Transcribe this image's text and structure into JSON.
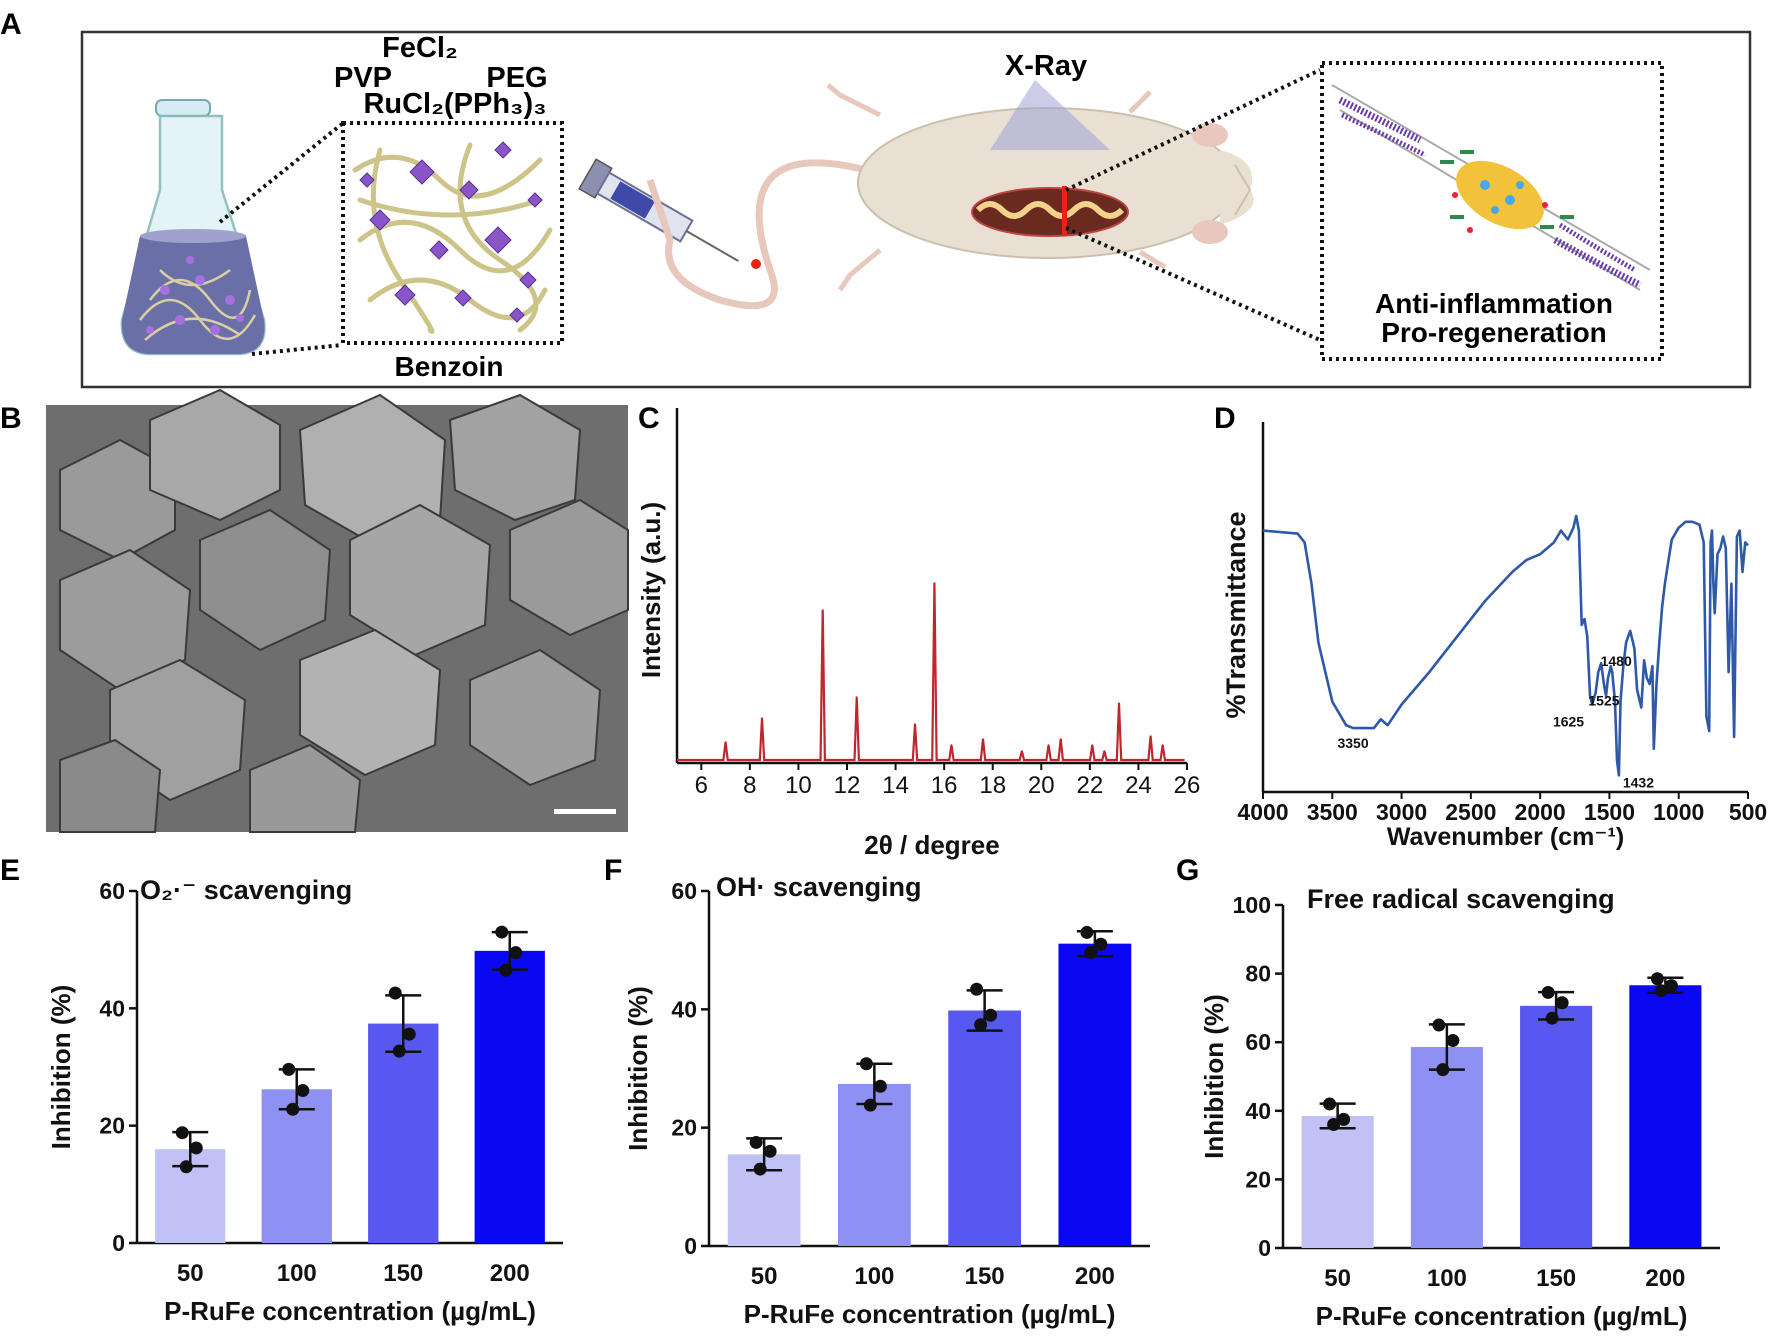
{
  "panel_labels": {
    "a": "A",
    "b": "B",
    "c": "C",
    "d": "D",
    "e": "E",
    "f": "F",
    "g": "G"
  },
  "schematic": {
    "reagents": {
      "fecl2": "FeCl₂",
      "pvp": "PVP",
      "peg": "PEG",
      "rucl2": "RuCl₂(PPh₃)₃"
    },
    "benzoin_label": "Benzoin",
    "xray_label": "X-Ray",
    "effect_line1": "Anti-inflammation",
    "effect_line2": "Pro-regeneration",
    "colors": {
      "flask_liquid": "#6b6fa8",
      "crystal": "#8a55c8",
      "fiber": "#cdc48a",
      "rat": "#e9dfd2",
      "xray_cone": "#9fa3d6",
      "nerve": "#6a3aa8"
    }
  },
  "chart_data": [
    {
      "panel": "C",
      "type": "line",
      "xlabel": "2θ / degree",
      "ylabel": "Intensity (a.u.)",
      "xlim": [
        5,
        26
      ],
      "xticks": [
        6,
        8,
        10,
        12,
        14,
        16,
        18,
        20,
        22,
        24,
        26
      ],
      "color": "#c0262d",
      "peaks": [
        {
          "x": 7.0,
          "h": 0.06
        },
        {
          "x": 8.5,
          "h": 0.14
        },
        {
          "x": 11.0,
          "h": 0.5
        },
        {
          "x": 12.4,
          "h": 0.21
        },
        {
          "x": 14.8,
          "h": 0.12
        },
        {
          "x": 15.6,
          "h": 0.59
        },
        {
          "x": 16.3,
          "h": 0.05
        },
        {
          "x": 17.6,
          "h": 0.07
        },
        {
          "x": 19.2,
          "h": 0.03
        },
        {
          "x": 20.3,
          "h": 0.05
        },
        {
          "x": 20.8,
          "h": 0.07
        },
        {
          "x": 22.1,
          "h": 0.05
        },
        {
          "x": 22.6,
          "h": 0.03
        },
        {
          "x": 23.2,
          "h": 0.19
        },
        {
          "x": 24.5,
          "h": 0.08
        },
        {
          "x": 25.0,
          "h": 0.05
        }
      ]
    },
    {
      "panel": "D",
      "type": "line",
      "xlabel": "Wavenumber (cm⁻¹)",
      "ylabel": "%Transmittance",
      "xlim": [
        4000,
        500
      ],
      "xticks": [
        4000,
        3500,
        3000,
        2500,
        2000,
        1500,
        1000,
        500
      ],
      "color": "#2e58a8",
      "x": [
        4000,
        3750,
        3700,
        3650,
        3600,
        3500,
        3400,
        3350,
        3300,
        3200,
        3150,
        3100,
        3000,
        2800,
        2600,
        2400,
        2200,
        2100,
        2000,
        1900,
        1850,
        1800,
        1760,
        1740,
        1720,
        1700,
        1680,
        1660,
        1640,
        1625,
        1600,
        1580,
        1560,
        1540,
        1525,
        1510,
        1490,
        1480,
        1460,
        1445,
        1432,
        1420,
        1400,
        1380,
        1350,
        1320,
        1300,
        1270,
        1250,
        1230,
        1210,
        1190,
        1180,
        1160,
        1140,
        1120,
        1100,
        1080,
        1050,
        1000,
        950,
        900,
        850,
        820,
        800,
        780,
        770,
        760,
        750,
        740,
        720,
        700,
        680,
        660,
        640,
        620,
        600,
        580,
        560,
        540,
        520,
        500
      ],
      "y": [
        0.88,
        0.87,
        0.84,
        0.7,
        0.5,
        0.3,
        0.22,
        0.21,
        0.21,
        0.21,
        0.24,
        0.22,
        0.29,
        0.4,
        0.52,
        0.64,
        0.74,
        0.78,
        0.8,
        0.84,
        0.88,
        0.85,
        0.89,
        0.93,
        0.88,
        0.56,
        0.58,
        0.52,
        0.32,
        0.29,
        0.33,
        0.4,
        0.43,
        0.36,
        0.32,
        0.38,
        0.42,
        0.4,
        0.3,
        0.1,
        0.05,
        0.3,
        0.42,
        0.5,
        0.54,
        0.48,
        0.34,
        0.28,
        0.44,
        0.38,
        0.36,
        0.42,
        0.14,
        0.36,
        0.5,
        0.62,
        0.7,
        0.76,
        0.85,
        0.89,
        0.91,
        0.91,
        0.9,
        0.84,
        0.25,
        0.2,
        0.84,
        0.88,
        0.7,
        0.6,
        0.8,
        0.82,
        0.86,
        0.82,
        0.4,
        0.7,
        0.18,
        0.86,
        0.88,
        0.74,
        0.84,
        0.83
      ],
      "annotations": [
        {
          "text": "3350",
          "x": 3350,
          "y": 0.21
        },
        {
          "text": "1480",
          "x": 1480,
          "y": 0.4
        },
        {
          "text": "1525",
          "x": 1525,
          "y": 0.32
        },
        {
          "text": "1625",
          "x": 1625,
          "y": 0.29
        },
        {
          "text": "1432",
          "x": 1432,
          "y": 0.05
        }
      ]
    },
    {
      "panel": "E",
      "type": "bar",
      "title": "O₂·⁻ scavenging",
      "xlabel": "P-RuFe concentration (µg/mL)",
      "ylabel": "Inhibition (%)",
      "categories": [
        "50",
        "100",
        "150",
        "200"
      ],
      "values": [
        16,
        26.2,
        37.4,
        49.8
      ],
      "errors": [
        2.9,
        3.4,
        4.8,
        3.2
      ],
      "points": [
        [
          18.8,
          16.2,
          13.0
        ],
        [
          29.6,
          26.0,
          22.8
        ],
        [
          42.6,
          35.6,
          32.7
        ],
        [
          53.0,
          49.5,
          46.5
        ]
      ],
      "ylim": [
        0,
        60
      ],
      "yticks": [
        0,
        20,
        40,
        60
      ],
      "colors": [
        "#c0c2f6",
        "#8e91f2",
        "#5658f0",
        "#0a08f2"
      ]
    },
    {
      "panel": "F",
      "type": "bar",
      "title": "OH· scavenging",
      "xlabel": "P-RuFe concentration (µg/mL)",
      "ylabel": "Inhibition (%)",
      "categories": [
        "50",
        "100",
        "150",
        "200"
      ],
      "values": [
        15.5,
        27.4,
        39.8,
        51.1
      ],
      "errors": [
        2.7,
        3.4,
        3.4,
        2.1
      ],
      "points": [
        [
          17.5,
          16.0,
          13.0
        ],
        [
          30.8,
          27.0,
          23.8
        ],
        [
          43.4,
          39.0,
          37.4
        ],
        [
          53.0,
          51.0,
          49.6
        ]
      ],
      "ylim": [
        0,
        60
      ],
      "yticks": [
        0,
        20,
        40,
        60
      ],
      "colors": [
        "#c0c2f6",
        "#8e91f2",
        "#5658f0",
        "#0a08f2"
      ]
    },
    {
      "panel": "G",
      "type": "bar",
      "title": "Free radical scavenging",
      "xlabel": "P-RuFe concentration (µg/mL)",
      "ylabel": "Inhibition (%)",
      "categories": [
        "50",
        "100",
        "150",
        "200"
      ],
      "values": [
        38.5,
        58.6,
        70.6,
        76.6
      ],
      "errors": [
        3.6,
        6.6,
        4.0,
        2.2
      ],
      "points": [
        [
          42.0,
          37.5,
          36.0
        ],
        [
          65.0,
          60.5,
          52.0
        ],
        [
          74.5,
          71.5,
          67.0
        ],
        [
          78.5,
          76.5,
          75.0
        ]
      ],
      "ylim": [
        0,
        100
      ],
      "yticks": [
        0,
        20,
        40,
        60,
        80,
        100
      ],
      "colors": [
        "#c0c2f6",
        "#8e91f2",
        "#5658f0",
        "#0a08f2"
      ]
    }
  ]
}
